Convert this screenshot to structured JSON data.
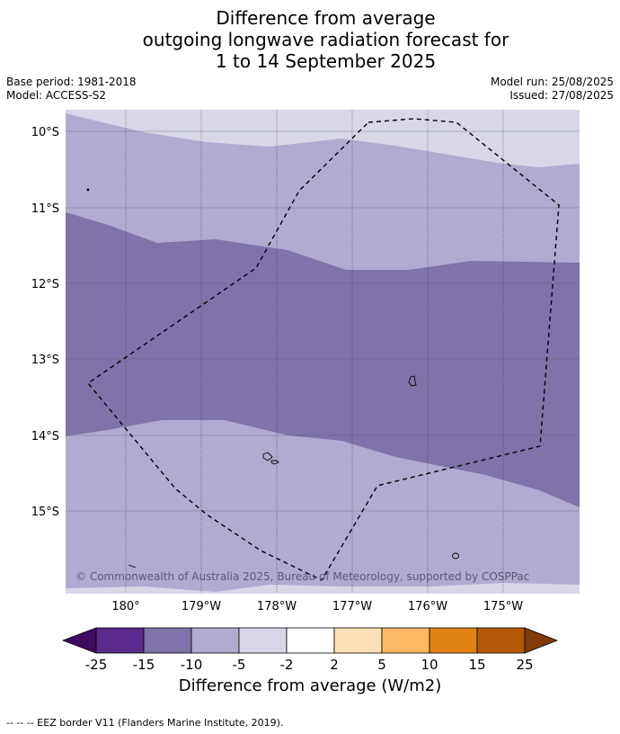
{
  "title": {
    "line1": "Difference from average",
    "line2": "outgoing longwave radiation forecast for",
    "line3": "1 to 14 September 2025"
  },
  "meta": {
    "base_period": "Base period: 1981-2018",
    "model": "Model: ACCESS-S2",
    "model_run": "Model run: 25/08/2025",
    "issued": "Issued: 27/08/2025"
  },
  "map": {
    "lon_labels": [
      "180°",
      "179°W",
      "178°W",
      "177°W",
      "176°W",
      "175°W"
    ],
    "lat_labels": [
      "10°S",
      "11°S",
      "12°S",
      "13°S",
      "14°S",
      "15°S"
    ],
    "copyright": "© Commonwealth of Australia 2025, Bureau of Meteorology, supported by COSPPac",
    "colors": {
      "band_minus5_minus2": "#d7d7e9",
      "band_minus10_minus5": "#b1abd2",
      "band_minus15_minus10": "#7f73aa"
    }
  },
  "colorbar": {
    "ticks": [
      "-25",
      "-15",
      "-10",
      "-5",
      "-2",
      "2",
      "5",
      "10",
      "15",
      "25"
    ],
    "colors": [
      "#3f0a5f",
      "#5b2a8c",
      "#7f73aa",
      "#b1abd2",
      "#d7d7e9",
      "#ffffff",
      "#fee0b6",
      "#fdb863",
      "#e08214",
      "#b35806",
      "#7f3b08"
    ],
    "label": "Difference from average (W/m2)"
  },
  "footer": {
    "legend": "--  --  -- EEZ border V11 (Flanders Marine Institute, 2019)."
  }
}
